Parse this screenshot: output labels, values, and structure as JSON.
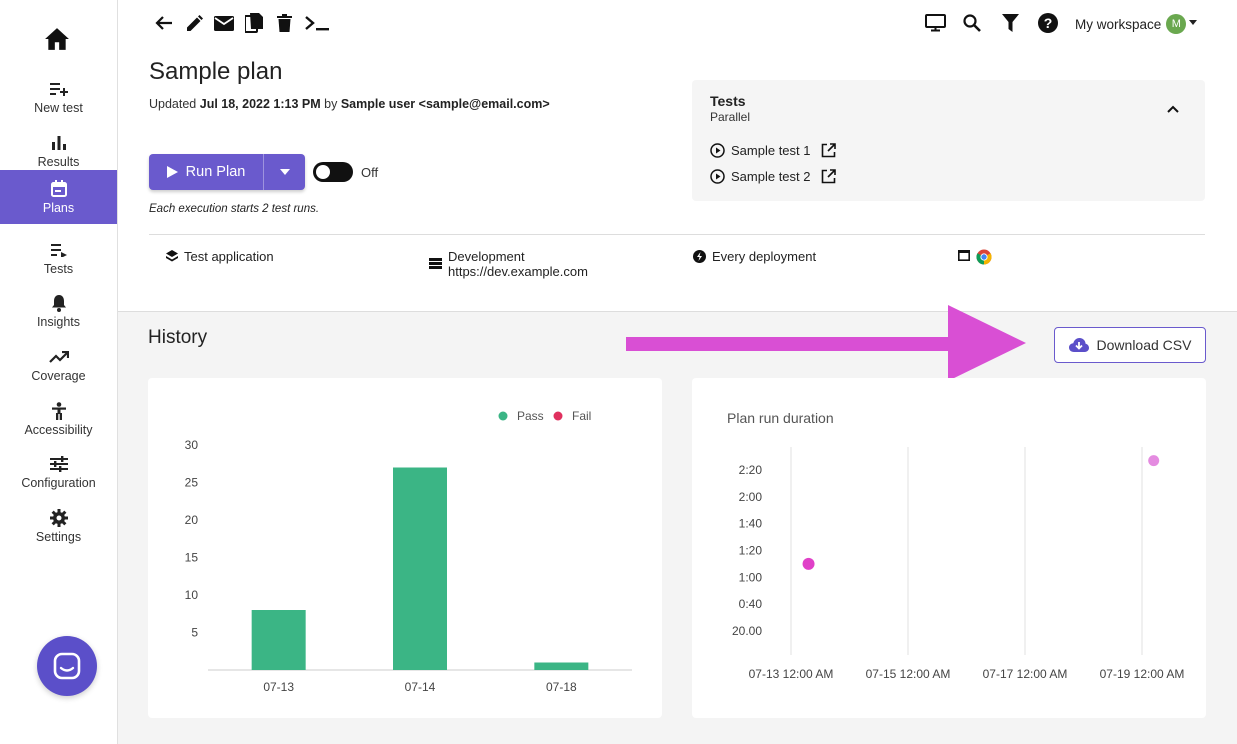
{
  "sidebar": {
    "items": [
      {
        "label": "New test",
        "icon": "playlist-add-icon"
      },
      {
        "label": "Results",
        "icon": "bar-chart-icon"
      },
      {
        "label": "Plans",
        "icon": "calendar-icon"
      },
      {
        "label": "Tests",
        "icon": "playlist-play-icon"
      },
      {
        "label": "Insights",
        "icon": "bell-icon"
      },
      {
        "label": "Coverage",
        "icon": "trending-up-icon"
      },
      {
        "label": "Accessibility",
        "icon": "accessibility-icon"
      },
      {
        "label": "Configuration",
        "icon": "tune-icon"
      },
      {
        "label": "Settings",
        "icon": "gear-icon"
      }
    ],
    "active": "Plans"
  },
  "toolbar": {
    "workspace_label": "My workspace",
    "avatar_initial": "M"
  },
  "plan": {
    "title": "Sample plan",
    "updated_prefix": "Updated",
    "updated_date": "Jul 18, 2022 1:13 PM",
    "updated_by": "by",
    "updated_user": "Sample user <sample@email.com>",
    "run_label": "Run Plan",
    "toggle_label": "Off",
    "exec_note": "Each execution starts 2 test runs."
  },
  "tests_panel": {
    "title": "Tests",
    "mode": "Parallel",
    "tests": [
      "Sample test 1",
      "Sample test 2"
    ]
  },
  "meta": {
    "application": "Test application",
    "environment_name": "Development",
    "environment_url": "https://dev.example.com",
    "trigger": "Every deployment"
  },
  "history": {
    "title": "History",
    "download_label": "Download CSV"
  },
  "colors": {
    "accent": "#6a5acd",
    "pass": "#3bb585",
    "fail": "#e0305e",
    "duration_point": "#e040c8",
    "arrow": "#d94fd4"
  },
  "chart_data": [
    {
      "type": "bar",
      "title": "",
      "categories": [
        "07-13",
        "07-14",
        "07-18"
      ],
      "series": [
        {
          "name": "Pass",
          "values": [
            8,
            27,
            1
          ]
        },
        {
          "name": "Fail",
          "values": [
            0,
            0,
            0
          ]
        }
      ],
      "yticks": [
        5,
        10,
        15,
        20,
        25,
        30
      ],
      "ylim": [
        0,
        30
      ],
      "legend": "top-right"
    },
    {
      "type": "scatter",
      "title": "Plan run duration",
      "xticks": [
        "07-13 12:00 AM",
        "07-15 12:00 AM",
        "07-17 12:00 AM",
        "07-19 12:00 AM"
      ],
      "yticks": [
        "20.00",
        "0:40",
        "1:00",
        "1:20",
        "1:40",
        "2:00",
        "2:20"
      ],
      "points": [
        {
          "x_day": 0.3,
          "y_seconds": 70
        },
        {
          "x_day": 6.2,
          "y_seconds": 147
        }
      ],
      "xlim_days": [
        0,
        6
      ],
      "ylim_seconds": [
        0,
        150
      ]
    }
  ]
}
